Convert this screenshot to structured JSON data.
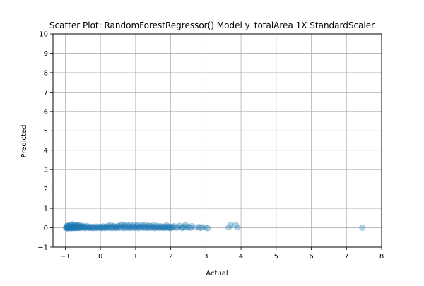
{
  "chart_data": {
    "type": "scatter",
    "title": "Scatter Plot: RandomForestRegressor() Model y_totalArea 1X StandardScaler",
    "xlabel": "Actual",
    "ylabel": "Predicted",
    "xlim": [
      -1.35,
      8.0
    ],
    "ylim": [
      -1,
      10
    ],
    "xticks": [
      -1,
      0,
      1,
      2,
      3,
      4,
      5,
      6,
      7,
      8
    ],
    "yticks": [
      -1,
      0,
      1,
      2,
      3,
      4,
      5,
      6,
      7,
      8,
      9,
      10
    ],
    "grid": true,
    "legend": "none",
    "point_color": "#1f77b4",
    "point_alpha": 0.3,
    "series": [
      {
        "points": [
          [
            -0.98,
            0.0
          ],
          [
            -0.97,
            0.05
          ],
          [
            -0.96,
            -0.02
          ],
          [
            -0.95,
            0.1
          ],
          [
            -0.94,
            0.02
          ],
          [
            -0.93,
            -0.03
          ],
          [
            -0.92,
            0.08
          ],
          [
            -0.91,
            0.0
          ],
          [
            -0.9,
            0.12
          ],
          [
            -0.89,
            0.03
          ],
          [
            -0.88,
            -0.02
          ],
          [
            -0.87,
            0.07
          ],
          [
            -0.86,
            0.15
          ],
          [
            -0.85,
            0.01
          ],
          [
            -0.84,
            0.05
          ],
          [
            -0.83,
            -0.03
          ],
          [
            -0.82,
            0.1
          ],
          [
            -0.81,
            0.02
          ],
          [
            -0.8,
            0.18
          ],
          [
            -0.79,
            0.0
          ],
          [
            -0.78,
            0.06
          ],
          [
            -0.77,
            -0.02
          ],
          [
            -0.76,
            0.12
          ],
          [
            -0.75,
            0.04
          ],
          [
            -0.74,
            0.0
          ],
          [
            -0.73,
            0.09
          ],
          [
            -0.72,
            0.16
          ],
          [
            -0.71,
            -0.01
          ],
          [
            -0.7,
            0.05
          ],
          [
            -0.69,
            0.02
          ],
          [
            -0.68,
            0.11
          ],
          [
            -0.67,
            0.0
          ],
          [
            -0.66,
            0.07
          ],
          [
            -0.65,
            0.14
          ],
          [
            -0.64,
            -0.02
          ],
          [
            -0.63,
            0.03
          ],
          [
            -0.62,
            0.08
          ],
          [
            -0.61,
            0.0
          ],
          [
            -0.6,
            0.13
          ],
          [
            -0.58,
            0.04
          ],
          [
            -0.56,
            -0.01
          ],
          [
            -0.55,
            0.06
          ],
          [
            -0.53,
            0.1
          ],
          [
            -0.5,
            0.02
          ],
          [
            -0.48,
            0.07
          ],
          [
            -0.46,
            -0.02
          ],
          [
            -0.44,
            0.05
          ],
          [
            -0.42,
            0.01
          ],
          [
            -0.4,
            0.09
          ],
          [
            -0.38,
            0.03
          ],
          [
            -0.35,
            0.0
          ],
          [
            -0.33,
            0.06
          ],
          [
            -0.3,
            -0.01
          ],
          [
            -0.28,
            0.04
          ],
          [
            -0.25,
            0.0
          ],
          [
            -0.22,
            0.05
          ],
          [
            -0.2,
            -0.02
          ],
          [
            -0.18,
            0.03
          ],
          [
            -0.15,
            0.01
          ],
          [
            -0.12,
            0.06
          ],
          [
            -0.1,
            -0.01
          ],
          [
            -0.08,
            0.02
          ],
          [
            -0.05,
            0.04
          ],
          [
            -0.02,
            0.0
          ],
          [
            0.0,
            0.05
          ],
          [
            0.03,
            -0.02
          ],
          [
            0.05,
            0.03
          ],
          [
            0.08,
            0.07
          ],
          [
            0.1,
            0.0
          ],
          [
            0.13,
            0.04
          ],
          [
            0.15,
            -0.01
          ],
          [
            0.18,
            0.06
          ],
          [
            0.2,
            0.02
          ],
          [
            0.22,
            0.1
          ],
          [
            0.25,
            0.0
          ],
          [
            0.28,
            0.05
          ],
          [
            0.3,
            0.13
          ],
          [
            0.33,
            -0.02
          ],
          [
            0.35,
            0.04
          ],
          [
            0.38,
            0.08
          ],
          [
            0.4,
            0.01
          ],
          [
            0.43,
            0.06
          ],
          [
            0.45,
            -0.01
          ],
          [
            0.48,
            0.03
          ],
          [
            0.5,
            0.09
          ],
          [
            0.53,
            0.0
          ],
          [
            0.55,
            0.05
          ],
          [
            0.58,
            0.14
          ],
          [
            0.6,
            0.02
          ],
          [
            0.62,
            0.17
          ],
          [
            0.65,
            0.06
          ],
          [
            0.67,
            -0.02
          ],
          [
            0.7,
            0.1
          ],
          [
            0.72,
            0.03
          ],
          [
            0.75,
            0.15
          ],
          [
            0.78,
            0.0
          ],
          [
            0.8,
            0.07
          ],
          [
            0.83,
            0.12
          ],
          [
            0.85,
            -0.01
          ],
          [
            0.88,
            0.04
          ],
          [
            0.9,
            0.09
          ],
          [
            0.93,
            0.01
          ],
          [
            0.95,
            0.16
          ],
          [
            0.98,
            0.05
          ],
          [
            1.0,
            0.0
          ],
          [
            1.03,
            0.08
          ],
          [
            1.05,
            0.12
          ],
          [
            1.08,
            -0.02
          ],
          [
            1.1,
            0.04
          ],
          [
            1.13,
            0.1
          ],
          [
            1.15,
            0.02
          ],
          [
            1.18,
            0.06
          ],
          [
            1.2,
            0.13
          ],
          [
            1.23,
            0.0
          ],
          [
            1.25,
            0.05
          ],
          [
            1.28,
            0.15
          ],
          [
            1.3,
            0.01
          ],
          [
            1.33,
            0.07
          ],
          [
            1.35,
            -0.01
          ],
          [
            1.38,
            0.1
          ],
          [
            1.4,
            0.03
          ],
          [
            1.43,
            0.08
          ],
          [
            1.45,
            0.0
          ],
          [
            1.48,
            0.05
          ],
          [
            1.5,
            0.12
          ],
          [
            1.53,
            0.02
          ],
          [
            1.55,
            -0.02
          ],
          [
            1.58,
            0.06
          ],
          [
            1.6,
            0.1
          ],
          [
            1.63,
            0.01
          ],
          [
            1.65,
            0.04
          ],
          [
            1.68,
            0.0
          ],
          [
            1.7,
            0.08
          ],
          [
            1.73,
            0.02
          ],
          [
            1.75,
            0.05
          ],
          [
            1.78,
            -0.01
          ],
          [
            1.8,
            0.03
          ],
          [
            1.83,
            0.07
          ],
          [
            1.85,
            0.0
          ],
          [
            1.88,
            0.12
          ],
          [
            1.9,
            0.04
          ],
          [
            1.93,
            0.01
          ],
          [
            1.95,
            0.06
          ],
          [
            1.98,
            -0.02
          ],
          [
            2.0,
            0.03
          ],
          [
            2.03,
            0.0
          ],
          [
            2.05,
            0.05
          ],
          [
            2.1,
            0.08
          ],
          [
            2.15,
            0.0
          ],
          [
            2.2,
            0.03
          ],
          [
            2.25,
            0.1
          ],
          [
            2.3,
            0.02
          ],
          [
            2.33,
            -0.01
          ],
          [
            2.38,
            0.06
          ],
          [
            2.42,
            0.14
          ],
          [
            2.45,
            0.01
          ],
          [
            2.5,
            0.05
          ],
          [
            2.55,
            0.0
          ],
          [
            2.6,
            0.08
          ],
          [
            2.7,
            0.02
          ],
          [
            2.8,
            0.04
          ],
          [
            2.85,
            -0.01
          ],
          [
            2.9,
            0.03
          ],
          [
            3.0,
            0.01
          ],
          [
            3.05,
            -0.02
          ],
          [
            3.65,
            0.03
          ],
          [
            3.7,
            0.15
          ],
          [
            3.85,
            0.14
          ],
          [
            3.9,
            0.02
          ],
          [
            7.45,
            0.0
          ]
        ]
      }
    ]
  }
}
